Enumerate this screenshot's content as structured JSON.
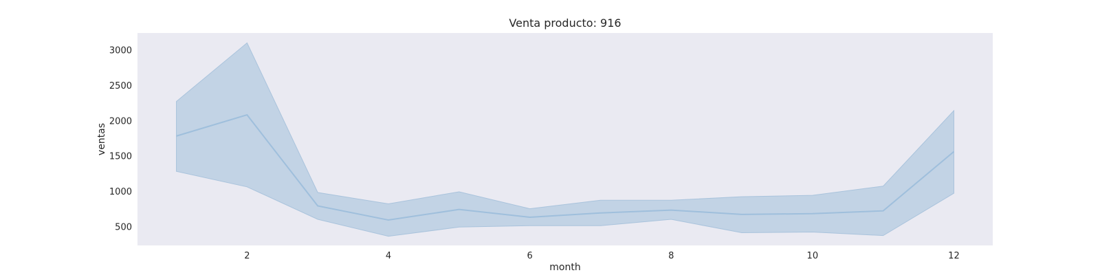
{
  "chart_data": {
    "type": "line",
    "title": "Venta producto: 916",
    "xlabel": "month",
    "ylabel": "ventas",
    "xlim": [
      0.45,
      12.55
    ],
    "ylim": [
      230,
      3240
    ],
    "xticks": [
      2,
      4,
      6,
      8,
      10,
      12
    ],
    "yticks": [
      500,
      1000,
      1500,
      2000,
      2500,
      3000
    ],
    "grid": false,
    "series": [
      {
        "x": [
          1,
          2,
          3,
          4,
          5,
          6,
          7,
          8,
          9,
          10,
          11,
          12
        ],
        "values": [
          1780,
          2080,
          790,
          590,
          740,
          630,
          690,
          730,
          670,
          680,
          720,
          1560
        ],
        "ci_lower": [
          1280,
          1060,
          600,
          360,
          490,
          510,
          510,
          600,
          410,
          420,
          370,
          970
        ],
        "ci_upper": [
          2270,
          3100,
          980,
          820,
          990,
          750,
          870,
          870,
          920,
          940,
          1070,
          2140
        ]
      }
    ],
    "colors": {
      "background": "#eaeaf2",
      "line": "#9fbfdc",
      "band": "#c2d3e5",
      "band_edge": "#a9c3dc"
    }
  }
}
